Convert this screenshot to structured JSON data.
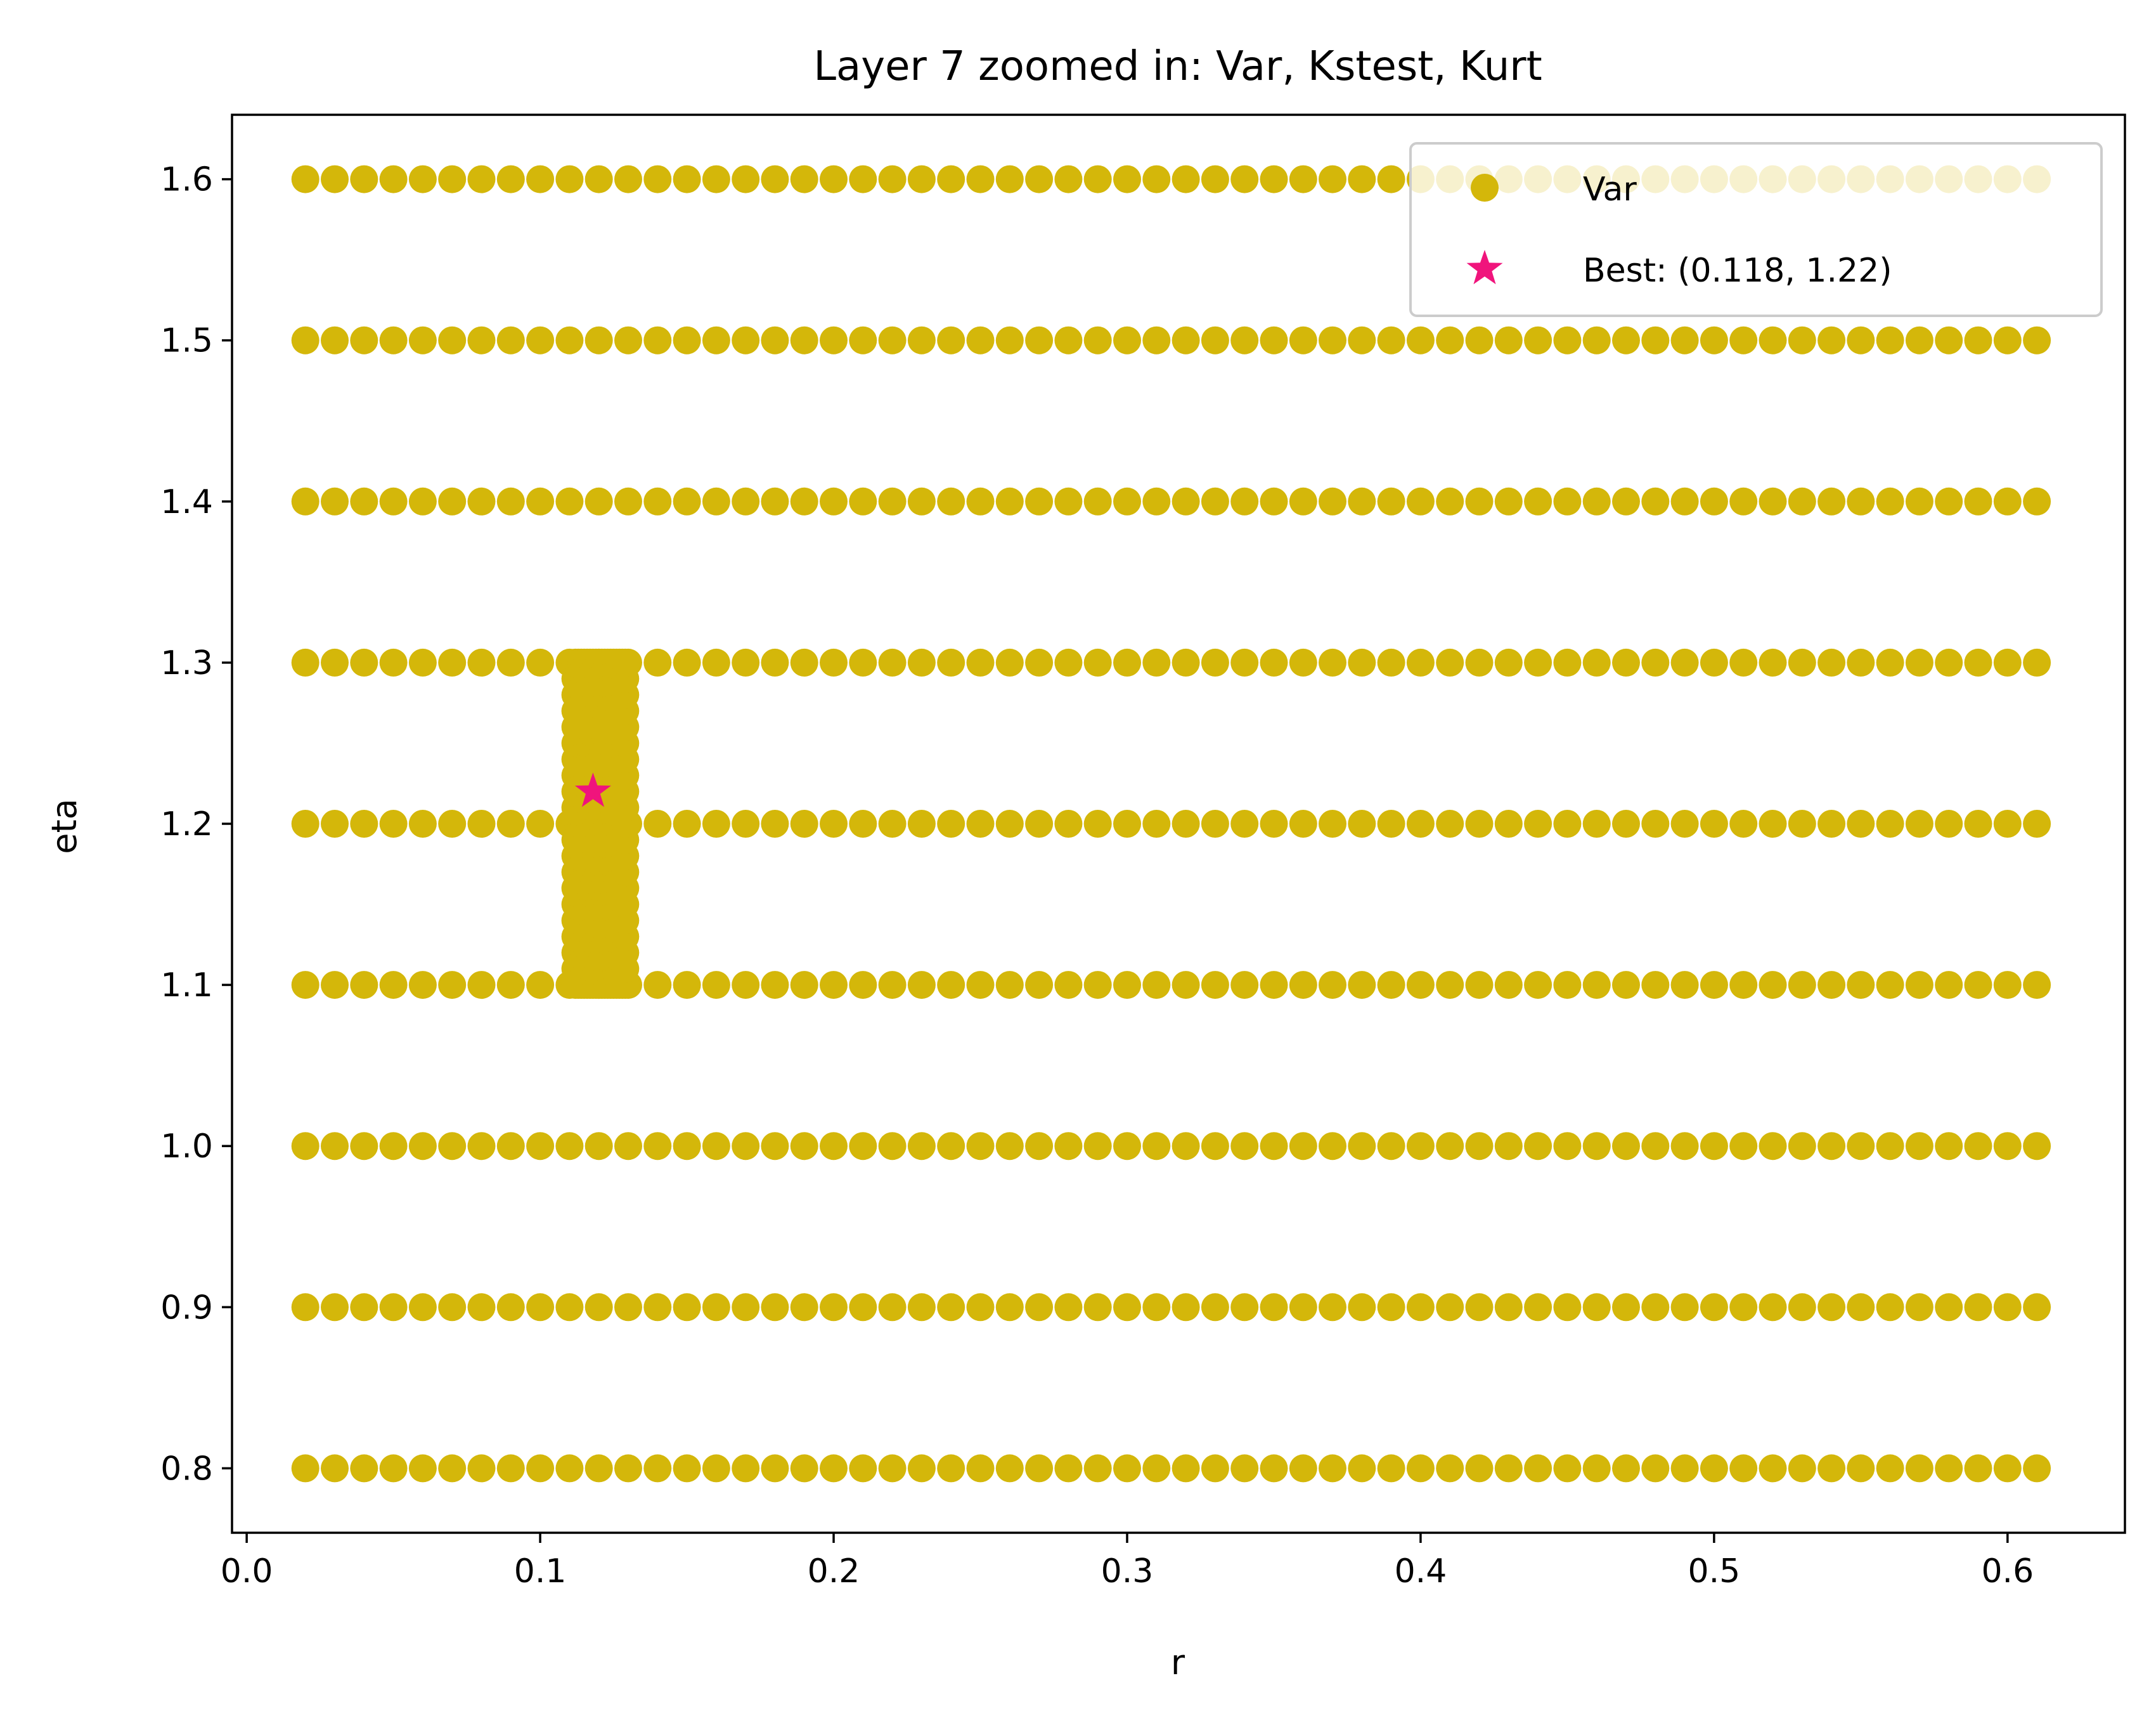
{
  "chart_data": {
    "type": "scatter",
    "title": "Layer 7 zoomed in: Var, Kstest, Kurt",
    "xlabel": "r",
    "ylabel": "eta",
    "xlim": [
      -0.005,
      0.64
    ],
    "ylim": [
      0.76,
      1.64
    ],
    "xticks": [
      0.0,
      0.1,
      0.2,
      0.3,
      0.4,
      0.5,
      0.6
    ],
    "xtick_labels": [
      "0.0",
      "0.1",
      "0.2",
      "0.3",
      "0.4",
      "0.5",
      "0.6"
    ],
    "yticks": [
      0.8,
      0.9,
      1.0,
      1.1,
      1.2,
      1.3,
      1.4,
      1.5,
      1.6
    ],
    "ytick_labels": [
      "0.8",
      "0.9",
      "1.0",
      "1.1",
      "1.2",
      "1.3",
      "1.4",
      "1.5",
      "1.6"
    ],
    "grid": false,
    "legend": {
      "placement": "top-right",
      "entries": [
        {
          "label": "Var",
          "marker": "circle",
          "color": "#D4B70A"
        },
        {
          "label": "Best: (0.118, 1.22)",
          "marker": "star",
          "color": "#F0147C"
        }
      ]
    },
    "series": [
      {
        "name": "Var",
        "color": "#D4B70A",
        "marker": "circle",
        "grid_x": {
          "start": 0.02,
          "end": 0.61,
          "step": 0.01
        },
        "grid_y": [
          0.8,
          0.9,
          1.0,
          1.1,
          1.2,
          1.3,
          1.4,
          1.5,
          1.6
        ],
        "refined_block": {
          "x": [
            0.112,
            0.113,
            0.114,
            0.115,
            0.116,
            0.117,
            0.118,
            0.119,
            0.12,
            0.121,
            0.122,
            0.123,
            0.124,
            0.125,
            0.126,
            0.127,
            0.128,
            0.129
          ],
          "y_range": [
            1.1,
            1.3
          ],
          "y_step": 0.01
        }
      },
      {
        "name": "Best: (0.118, 1.22)",
        "color": "#F0147C",
        "marker": "star",
        "points": [
          {
            "x": 0.118,
            "y": 1.22
          }
        ]
      }
    ]
  }
}
